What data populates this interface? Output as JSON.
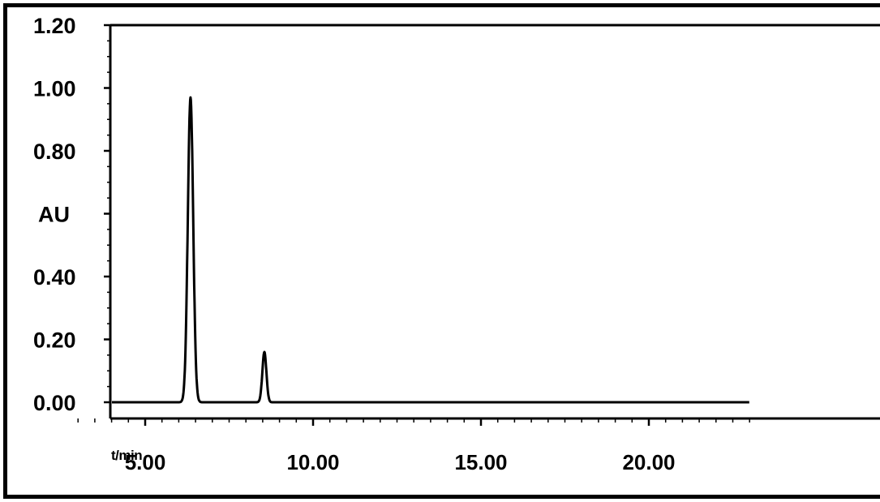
{
  "chart_data": {
    "type": "line",
    "title": "",
    "xlabel": "t/min",
    "ylabel": "AU",
    "xlim": [
      2.0,
      23.0
    ],
    "ylim": [
      -0.05,
      1.25
    ],
    "y_ticks": [
      {
        "value": 1.2,
        "label": "1.20"
      },
      {
        "value": 1.0,
        "label": "1.00"
      },
      {
        "value": 0.8,
        "label": "0.80"
      },
      {
        "value": 0.4,
        "label": "0.40"
      },
      {
        "value": 0.2,
        "label": "0.20"
      },
      {
        "value": 0.0,
        "label": "0.00"
      }
    ],
    "y_label_value": 0.6,
    "x_ticks": [
      {
        "value": 5.0,
        "label": "5.00"
      },
      {
        "value": 10.0,
        "label": "10.00"
      },
      {
        "value": 15.0,
        "label": "15.00"
      },
      {
        "value": 20.0,
        "label": "20.00"
      }
    ],
    "grid": false,
    "series": [
      {
        "color": "#000000",
        "peaks": [
          {
            "retention_time": 6.35,
            "height": 0.97,
            "width": 0.08
          },
          {
            "retention_time": 8.55,
            "height": 0.16,
            "width": 0.06
          }
        ],
        "baseline": 0.0
      }
    ]
  }
}
